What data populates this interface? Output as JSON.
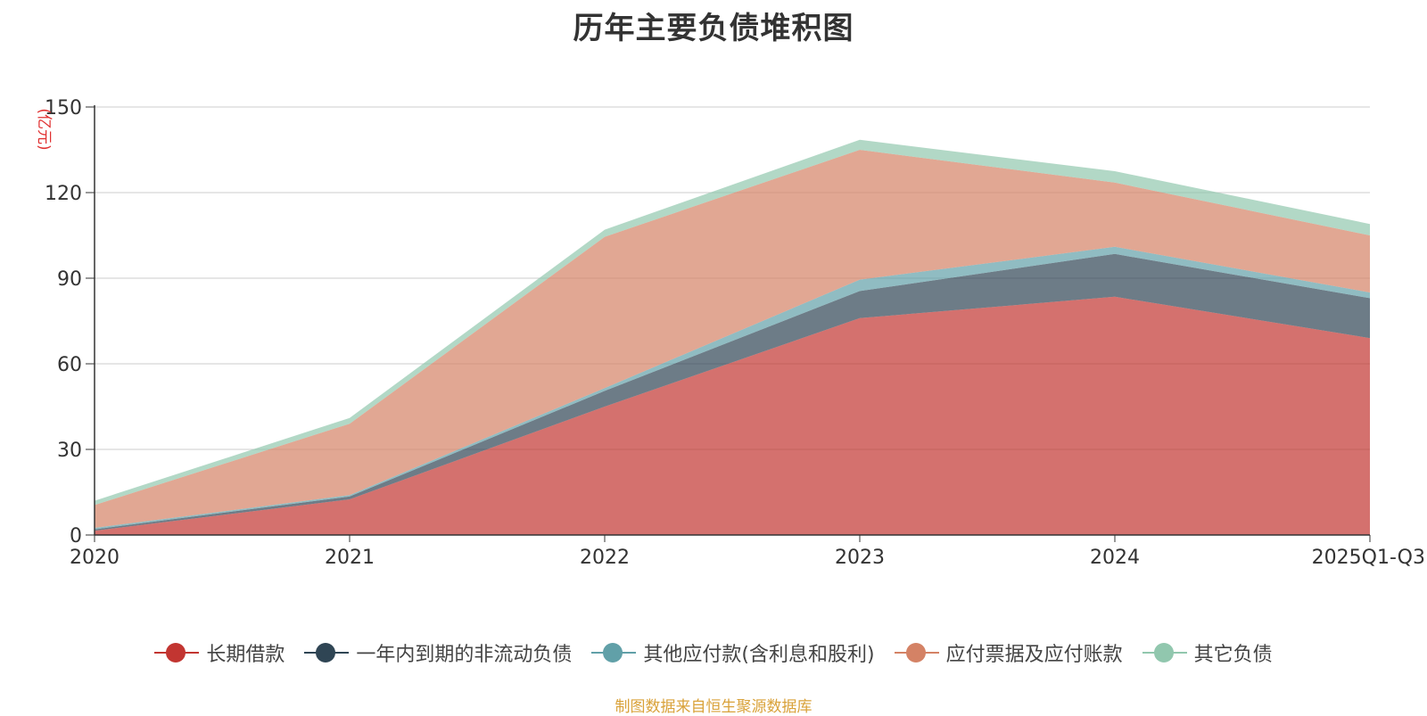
{
  "title": "历年主要负债堆积图",
  "footer": "制图数据来自恒生聚源数据库",
  "chart_data": {
    "type": "area",
    "stacked": true,
    "categories": [
      "2020",
      "2021",
      "2022",
      "2023",
      "2024",
      "2025Q1-Q3"
    ],
    "ylabel": "(亿元)",
    "xlabel": "",
    "ylim": [
      0,
      150
    ],
    "yticks": [
      0,
      30,
      60,
      90,
      120,
      150
    ],
    "grid": true,
    "legend_position": "bottom",
    "series": [
      {
        "name": "长期借款",
        "color": "#c23531",
        "values": [
          1.5,
          12.5,
          45,
          76,
          83.5,
          69
        ]
      },
      {
        "name": "一年内到期的非流动负债",
        "color": "#2f4554",
        "values": [
          0.5,
          1.0,
          5.5,
          9.5,
          15,
          14
        ]
      },
      {
        "name": "其他应付款(含利息和股利)",
        "color": "#61a0a8",
        "values": [
          0.5,
          0.5,
          1.0,
          4.0,
          2.5,
          2.0
        ]
      },
      {
        "name": "应付票据及应付账款",
        "color": "#d48265",
        "values": [
          8,
          25,
          53,
          45.5,
          22.5,
          20
        ]
      },
      {
        "name": "其它负债",
        "color": "#91c7ae",
        "values": [
          1.5,
          2.0,
          2.5,
          3.5,
          4.0,
          4.0
        ]
      }
    ]
  }
}
